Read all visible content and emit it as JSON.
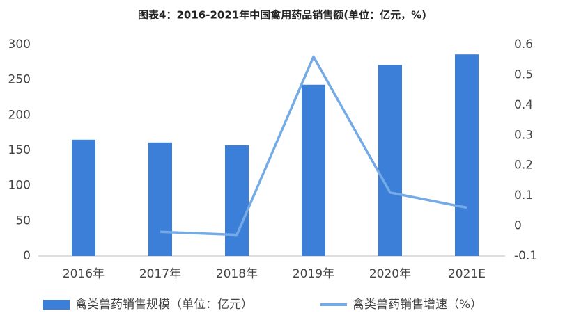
{
  "chart_data": {
    "type": "bar-line",
    "title": "图表4：2016-2021年中国禽用药品销售额(单位：亿元，%)",
    "categories": [
      "2016年",
      "2017年",
      "2018年",
      "2019年",
      "2020年",
      "2021E"
    ],
    "series": [
      {
        "name": "禽类兽药销售规模（单位：亿元）",
        "type": "bar",
        "color": "#3c7fd8",
        "values": [
          165,
          161,
          157,
          243,
          271,
          286
        ]
      },
      {
        "name": "禽类兽药销售增速（%）",
        "type": "line",
        "axis": "y2",
        "color": "#74aae6",
        "values": [
          null,
          -0.02,
          -0.03,
          0.56,
          0.11,
          0.06
        ]
      }
    ],
    "ylim": [
      0,
      300
    ],
    "yticks": [
      0,
      50,
      100,
      150,
      200,
      250,
      300
    ],
    "y2lim": [
      -0.1,
      0.6
    ],
    "y2ticks": [
      -0.1,
      0,
      0.1,
      0.2,
      0.3,
      0.4,
      0.5,
      0.6
    ],
    "grid": false,
    "legend": "bottom"
  }
}
